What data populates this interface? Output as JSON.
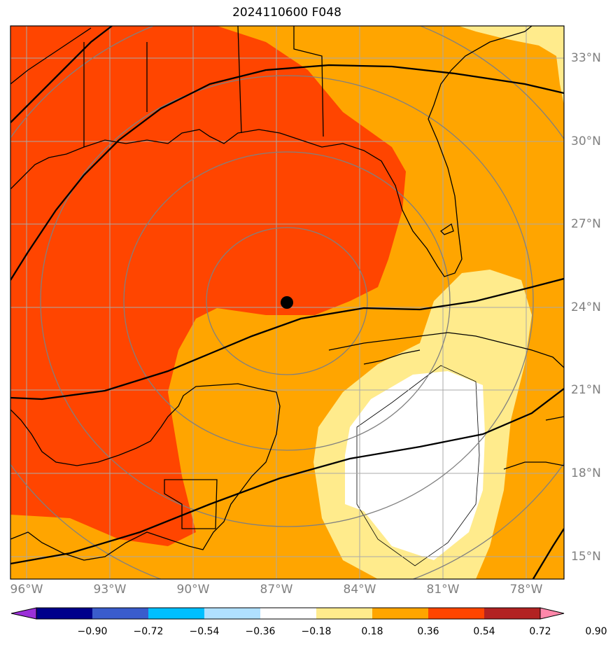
{
  "title": "2024110600 F048",
  "lon_labels": [
    "96°W",
    "93°W",
    "90°W",
    "87°W",
    "84°W",
    "81°W",
    "78°W"
  ],
  "lat_labels": [
    "33°N",
    "30°N",
    "27°N",
    "24°N",
    "21°N",
    "18°N",
    "15°N"
  ],
  "colorbar": {
    "levels": [
      "−0.90",
      "−0.72",
      "−0.54",
      "−0.36",
      "−0.18",
      "0.18",
      "0.36",
      "0.54",
      "0.72",
      "0.90"
    ],
    "colors": [
      "#9b30d8",
      "#00008b",
      "#3a5ccc",
      "#00bfff",
      "#b0e0ff",
      "#ffffff",
      "#ffeb8c",
      "#ffa500",
      "#ff4500",
      "#b22222",
      "#ff88aa"
    ]
  },
  "marker": {
    "name": "storm-center",
    "lon": -86.7,
    "lat": 24.2
  },
  "colors": {
    "orange_red": "#ff4500",
    "orange": "#ffa500",
    "light_yellow": "#ffeb8c",
    "white": "#ffffff",
    "grid": "#a9a9a9",
    "rings": "#808080",
    "coast": "#000000"
  }
}
